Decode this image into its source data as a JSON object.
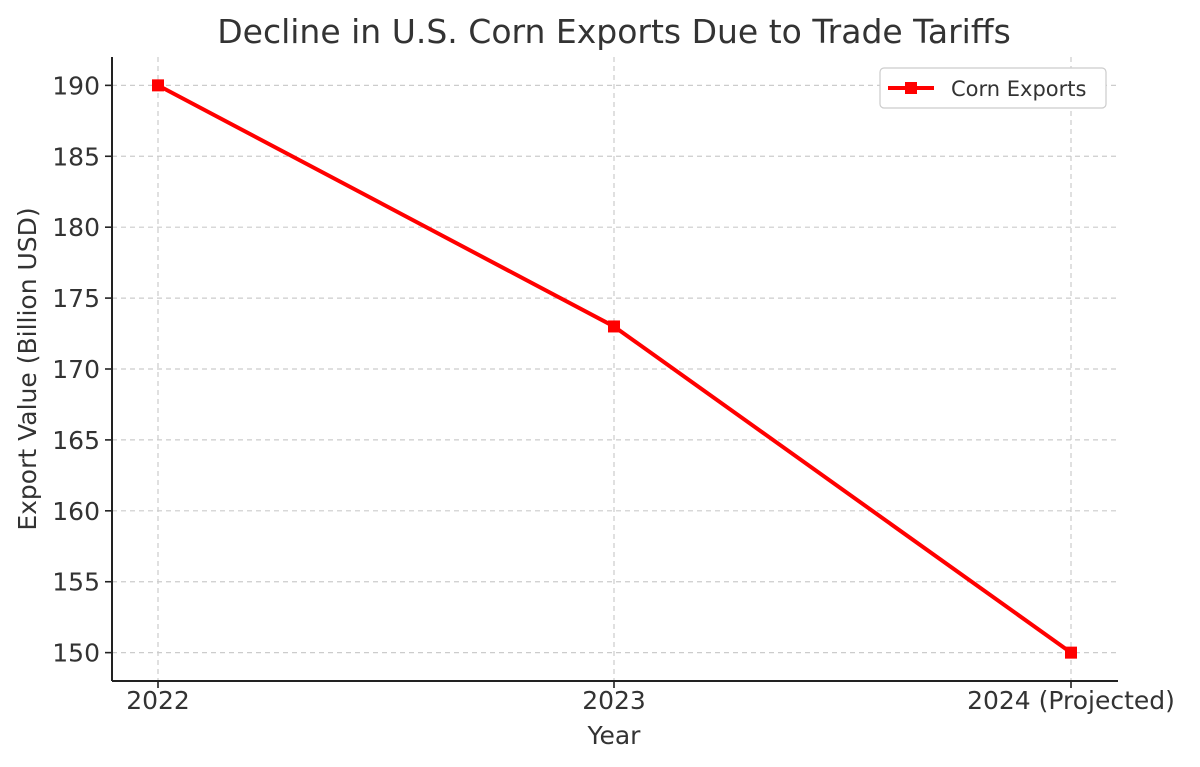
{
  "chart_data": {
    "type": "line",
    "title": "Decline in U.S. Corn Exports Due to Trade Tariffs",
    "xlabel": "Year",
    "ylabel": "Export Value (Billion USD)",
    "categories": [
      "2022",
      "2023",
      "2024 (Projected)"
    ],
    "series": [
      {
        "name": "Corn Exports",
        "values": [
          190,
          173,
          150
        ],
        "color": "#ff0000",
        "marker": "square"
      }
    ],
    "ylim": [
      148,
      192
    ],
    "yticks": [
      150,
      155,
      160,
      165,
      170,
      175,
      180,
      185,
      190
    ],
    "grid": true,
    "legend_position": "top-right"
  }
}
